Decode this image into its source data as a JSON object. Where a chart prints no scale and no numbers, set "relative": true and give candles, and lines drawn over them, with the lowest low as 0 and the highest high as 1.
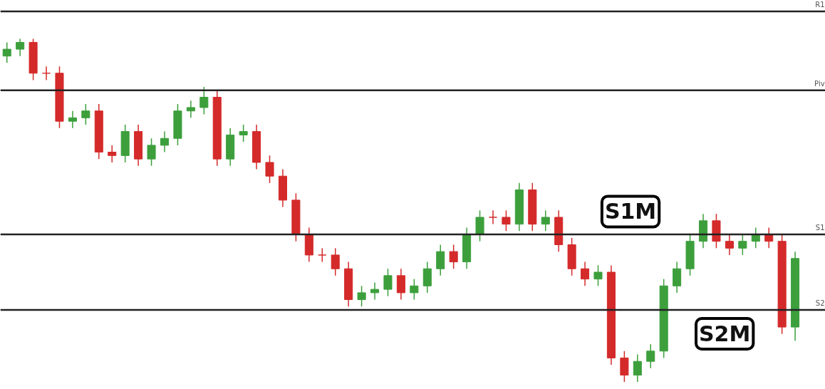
{
  "chart_data": {
    "type": "candlestick",
    "relative": true,
    "categories": [
      null,
      null,
      null,
      null,
      null,
      null,
      null,
      null,
      null,
      null,
      null,
      null,
      null,
      null,
      null,
      null,
      null,
      null,
      null,
      null,
      null,
      null,
      null,
      null,
      null,
      null,
      null,
      null,
      null,
      null,
      null,
      null,
      null,
      null,
      null,
      null,
      null,
      null,
      null,
      null,
      null,
      null,
      null,
      null,
      null,
      null,
      null,
      null,
      null,
      null,
      null,
      null,
      null,
      null,
      null,
      null,
      null,
      null,
      null,
      null,
      null
    ],
    "ohlc": [
      [
        0.95,
        0.99,
        0.93,
        0.97
      ],
      [
        0.97,
        1.0,
        0.95,
        0.99
      ],
      [
        0.99,
        1.0,
        0.88,
        0.9
      ],
      [
        0.9,
        0.92,
        0.88,
        0.9
      ],
      [
        0.9,
        0.92,
        0.74,
        0.76
      ],
      [
        0.76,
        0.79,
        0.74,
        0.77
      ],
      [
        0.77,
        0.81,
        0.75,
        0.79
      ],
      [
        0.79,
        0.81,
        0.65,
        0.67
      ],
      [
        0.67,
        0.69,
        0.64,
        0.66
      ],
      [
        0.66,
        0.75,
        0.64,
        0.73
      ],
      [
        0.73,
        0.75,
        0.63,
        0.65
      ],
      [
        0.65,
        0.71,
        0.63,
        0.69
      ],
      [
        0.69,
        0.73,
        0.67,
        0.71
      ],
      [
        0.71,
        0.81,
        0.69,
        0.79
      ],
      [
        0.79,
        0.82,
        0.77,
        0.8
      ],
      [
        0.8,
        0.86,
        0.78,
        0.83
      ],
      [
        0.83,
        0.85,
        0.63,
        0.65
      ],
      [
        0.65,
        0.74,
        0.63,
        0.72
      ],
      [
        0.72,
        0.75,
        0.7,
        0.73
      ],
      [
        0.73,
        0.75,
        0.62,
        0.64
      ],
      [
        0.64,
        0.66,
        0.58,
        0.6
      ],
      [
        0.6,
        0.62,
        0.51,
        0.53
      ],
      [
        0.53,
        0.55,
        0.41,
        0.43
      ],
      [
        0.43,
        0.45,
        0.35,
        0.37
      ],
      [
        0.37,
        0.39,
        0.35,
        0.37
      ],
      [
        0.37,
        0.39,
        0.31,
        0.33
      ],
      [
        0.33,
        0.35,
        0.22,
        0.24
      ],
      [
        0.24,
        0.28,
        0.22,
        0.26
      ],
      [
        0.26,
        0.29,
        0.24,
        0.27
      ],
      [
        0.27,
        0.33,
        0.25,
        0.31
      ],
      [
        0.31,
        0.33,
        0.24,
        0.26
      ],
      [
        0.26,
        0.3,
        0.24,
        0.28
      ],
      [
        0.28,
        0.35,
        0.26,
        0.33
      ],
      [
        0.33,
        0.4,
        0.31,
        0.38
      ],
      [
        0.38,
        0.4,
        0.33,
        0.35
      ],
      [
        0.35,
        0.45,
        0.33,
        0.43
      ],
      [
        0.43,
        0.5,
        0.41,
        0.48
      ],
      [
        0.48,
        0.5,
        0.46,
        0.48
      ],
      [
        0.48,
        0.5,
        0.44,
        0.46
      ],
      [
        0.46,
        0.58,
        0.44,
        0.56
      ],
      [
        0.56,
        0.58,
        0.44,
        0.46
      ],
      [
        0.46,
        0.5,
        0.44,
        0.48
      ],
      [
        0.48,
        0.5,
        0.38,
        0.4
      ],
      [
        0.4,
        0.42,
        0.31,
        0.33
      ],
      [
        0.33,
        0.35,
        0.28,
        0.3
      ],
      [
        0.3,
        0.34,
        0.28,
        0.32
      ],
      [
        0.32,
        0.34,
        0.05,
        0.07
      ],
      [
        0.07,
        0.09,
        0.0,
        0.02
      ],
      [
        0.02,
        0.08,
        0.0,
        0.06
      ],
      [
        0.06,
        0.11,
        0.04,
        0.09
      ],
      [
        0.09,
        0.3,
        0.07,
        0.28
      ],
      [
        0.28,
        0.35,
        0.26,
        0.33
      ],
      [
        0.33,
        0.43,
        0.31,
        0.41
      ],
      [
        0.41,
        0.49,
        0.39,
        0.47
      ],
      [
        0.47,
        0.49,
        0.39,
        0.41
      ],
      [
        0.41,
        0.43,
        0.37,
        0.39
      ],
      [
        0.39,
        0.43,
        0.37,
        0.41
      ],
      [
        0.41,
        0.45,
        0.39,
        0.43
      ],
      [
        0.43,
        0.45,
        0.39,
        0.41
      ],
      [
        0.41,
        0.43,
        0.14,
        0.16
      ],
      [
        0.16,
        0.38,
        0.12,
        0.36
      ]
    ],
    "colors": [
      "#3c9f3c",
      "#3c9f3c",
      "#d42a2a",
      "#d42a2a",
      "#d42a2a",
      "#3c9f3c",
      "#3c9f3c",
      "#d42a2a",
      "#d42a2a",
      "#3c9f3c",
      "#d42a2a",
      "#3c9f3c",
      "#3c9f3c",
      "#3c9f3c",
      "#3c9f3c",
      "#3c9f3c",
      "#d42a2a",
      "#3c9f3c",
      "#3c9f3c",
      "#d42a2a",
      "#d42a2a",
      "#d42a2a",
      "#d42a2a",
      "#d42a2a",
      "#d42a2a",
      "#d42a2a",
      "#d42a2a",
      "#3c9f3c",
      "#3c9f3c",
      "#3c9f3c",
      "#d42a2a",
      "#3c9f3c",
      "#3c9f3c",
      "#3c9f3c",
      "#d42a2a",
      "#3c9f3c",
      "#3c9f3c",
      "#d42a2a",
      "#d42a2a",
      "#3c9f3c",
      "#d42a2a",
      "#3c9f3c",
      "#d42a2a",
      "#d42a2a",
      "#d42a2a",
      "#3c9f3c",
      "#d42a2a",
      "#d42a2a",
      "#3c9f3c",
      "#3c9f3c",
      "#3c9f3c",
      "#3c9f3c",
      "#3c9f3c",
      "#3c9f3c",
      "#d42a2a",
      "#d42a2a",
      "#3c9f3c",
      "#3c9f3c",
      "#d42a2a",
      "#d42a2a",
      "#3c9f3c"
    ],
    "ref_lines": [
      {
        "axis": "y",
        "value": 1.08,
        "label": "R1",
        "color": "#222222"
      },
      {
        "axis": "y",
        "value": 0.85,
        "label": "Piv",
        "color": "#222222"
      },
      {
        "axis": "y",
        "value": 0.43,
        "label": "S1",
        "color": "#222222"
      },
      {
        "axis": "y",
        "value": 0.21,
        "label": "S2",
        "color": "#222222"
      }
    ],
    "annotations": [
      "S1M",
      "S2M"
    ],
    "grid": false
  }
}
